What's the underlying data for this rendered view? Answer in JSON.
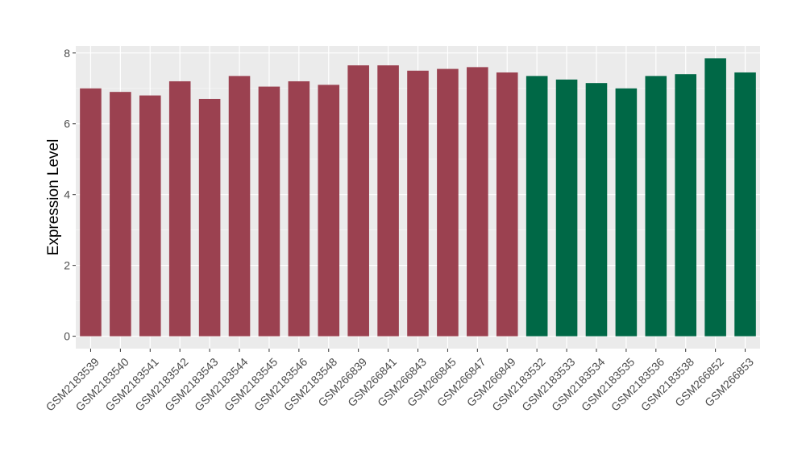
{
  "chart_data": {
    "type": "bar",
    "title": "",
    "xlabel": "",
    "ylabel": "Expression Level",
    "ylim": [
      -0.35,
      8.2
    ],
    "yticks": [
      0,
      2,
      4,
      6,
      8
    ],
    "grid": true,
    "legend": "none",
    "colors": {
      "group_a": "#9b4150",
      "group_b": "#006846",
      "panel_bg": "#ebebeb",
      "grid_major": "#ffffff",
      "axis_text": "#4d4d4d",
      "label_text": "#000000"
    },
    "categories": [
      "GSM2183539",
      "GSM2183540",
      "GSM2183541",
      "GSM2183542",
      "GSM2183543",
      "GSM2183544",
      "GSM2183545",
      "GSM2183546",
      "GSM2183548",
      "GSM266839",
      "GSM266841",
      "GSM266843",
      "GSM266845",
      "GSM266847",
      "GSM266849",
      "GSM2183532",
      "GSM2183533",
      "GSM2183534",
      "GSM2183535",
      "GSM2183536",
      "GSM2183538",
      "GSM266852",
      "GSM266853"
    ],
    "values": [
      7.0,
      6.9,
      6.8,
      7.2,
      6.7,
      7.35,
      7.05,
      7.2,
      7.1,
      7.65,
      7.65,
      7.5,
      7.55,
      7.6,
      7.45,
      7.35,
      7.25,
      7.15,
      7.0,
      7.35,
      7.4,
      7.85,
      7.45
    ],
    "groups": [
      "a",
      "a",
      "a",
      "a",
      "a",
      "a",
      "a",
      "a",
      "a",
      "a",
      "a",
      "a",
      "a",
      "a",
      "a",
      "b",
      "b",
      "b",
      "b",
      "b",
      "b",
      "b",
      "b"
    ]
  }
}
